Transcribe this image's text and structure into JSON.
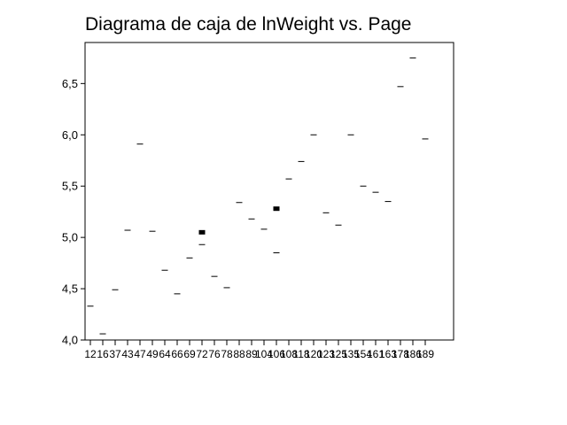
{
  "chart_data": {
    "type": "box",
    "title": "Diagrama de caja de lnWeight vs. Page",
    "xlabel": "",
    "ylabel": "",
    "ylim": [
      4.0,
      6.9
    ],
    "y_ticks": [
      "4,0",
      "4,5",
      "5,0",
      "5,5",
      "6,0",
      "6,5"
    ],
    "y_tick_values": [
      4.0,
      4.5,
      5.0,
      5.5,
      6.0,
      6.5
    ],
    "grid": false,
    "legend": "none",
    "categories": [
      "12",
      "16",
      "37",
      "43",
      "47",
      "49",
      "64",
      "66",
      "69",
      "72",
      "76",
      "78",
      "88",
      "89",
      "104",
      "106",
      "108",
      "118",
      "120",
      "123",
      "125",
      "135",
      "154",
      "161",
      "163",
      "178",
      "186",
      "189"
    ],
    "values": [
      4.33,
      4.06,
      4.49,
      5.07,
      5.91,
      5.06,
      4.68,
      4.45,
      4.8,
      [
        5.05,
        4.93
      ],
      4.62,
      4.51,
      5.34,
      5.18,
      5.08,
      [
        5.28,
        4.85
      ],
      5.57,
      5.74,
      6.0,
      5.24,
      5.12,
      6.0,
      5.5,
      5.44,
      5.35,
      6.47,
      6.75,
      5.96
    ],
    "colors": {
      "marks": "#000000",
      "axis": "#000000",
      "background": "#ffffff"
    }
  }
}
